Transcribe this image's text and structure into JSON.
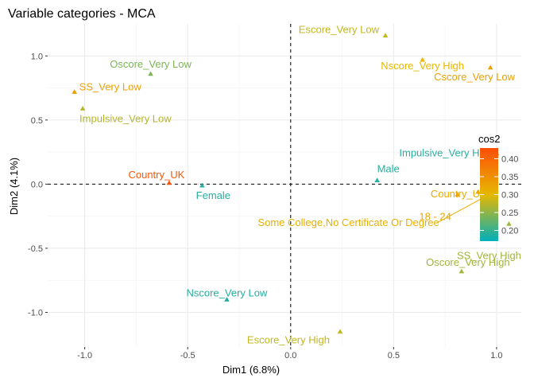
{
  "chart_data": {
    "type": "scatter",
    "title": "Variable categories - MCA",
    "xlabel": "Dim1 (6.8%)",
    "ylabel": "Dim2 (4.1%)",
    "xlim": [
      -1.18,
      1.12
    ],
    "ylim": [
      -1.27,
      1.25
    ],
    "xticks": [
      -1.0,
      -0.5,
      0.0,
      0.5,
      1.0
    ],
    "xtick_labels": [
      "-1.0",
      "-0.5",
      "0.0",
      "0.5",
      "1.0"
    ],
    "yticks": [
      -1.0,
      -0.5,
      0.0,
      0.5,
      1.0
    ],
    "ytick_labels": [
      "-1.0",
      "-0.5",
      "0.0",
      "0.5",
      "1.0"
    ],
    "grid": true,
    "reference_lines": {
      "x": 0,
      "y": 0
    },
    "points": [
      {
        "label": "Escore_Very Low",
        "x": 0.46,
        "y": 1.16,
        "cos2": 0.28
      },
      {
        "label": "Nscore_Very High",
        "x": 0.64,
        "y": 0.97,
        "cos2": 0.3
      },
      {
        "label": "Cscore_Very Low",
        "x": 0.97,
        "y": 0.91,
        "cos2": 0.33
      },
      {
        "label": "Oscore_Very Low",
        "x": -0.68,
        "y": 0.86,
        "cos2": 0.24
      },
      {
        "label": "SS_Very Low",
        "x": -1.05,
        "y": 0.72,
        "cos2": 0.33
      },
      {
        "label": "Impulsive_Very Low",
        "x": -1.01,
        "y": 0.59,
        "cos2": 0.27
      },
      {
        "label": "Impulsive_Very High",
        "x": 1.0,
        "y": 0.24,
        "cos2": 0.19
      },
      {
        "label": "Male",
        "x": 0.42,
        "y": 0.03,
        "cos2": 0.19
      },
      {
        "label": "Country_USA",
        "x": 0.91,
        "y": -0.06,
        "cos2": 0.32
      },
      {
        "label": "Country_UK",
        "x": -0.59,
        "y": 0.01,
        "cos2": 0.42
      },
      {
        "label": "Female",
        "x": -0.43,
        "y": -0.01,
        "cos2": 0.19
      },
      {
        "label": "18 - 24",
        "x": 0.81,
        "y": -0.08,
        "cos2": 0.32
      },
      {
        "label": "Some College,No Certificate Or Degree",
        "x": 0.93,
        "y": -0.11,
        "cos2": 0.31
      },
      {
        "label": "SS_Very High",
        "x": 1.06,
        "y": -0.31,
        "cos2": 0.26
      },
      {
        "label": "Oscore_Very High",
        "x": 0.83,
        "y": -0.68,
        "cos2": 0.26
      },
      {
        "label": "Nscore_Very Low",
        "x": -0.31,
        "y": -0.9,
        "cos2": 0.19
      },
      {
        "label": "Escore_Very High",
        "x": 0.24,
        "y": -1.15,
        "cos2": 0.28
      }
    ],
    "legend": {
      "title": "cos2",
      "position": "right",
      "range": [
        0.17,
        0.43
      ],
      "ticks": [
        0.2,
        0.25,
        0.3,
        0.35,
        0.4
      ],
      "tick_labels": [
        "0.20",
        "0.25",
        "0.30",
        "0.35",
        "0.40"
      ],
      "gradient": [
        {
          "value": 0.17,
          "color": "#00AFBB"
        },
        {
          "value": 0.3,
          "color": "#E7B800"
        },
        {
          "value": 0.43,
          "color": "#FC4E07"
        }
      ]
    }
  }
}
